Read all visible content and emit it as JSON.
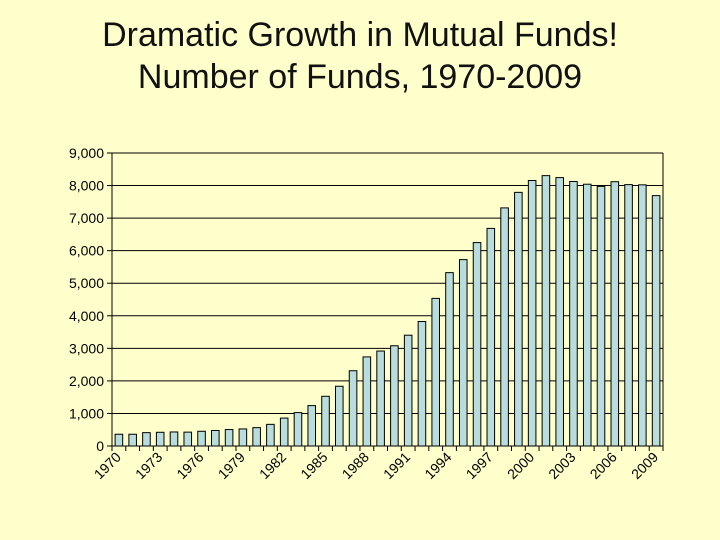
{
  "slide": {
    "title_line1": "Dramatic Growth in Mutual Funds!",
    "title_line2": "Number of Funds, 1970-2009"
  },
  "colors": {
    "background": "#ffffcc",
    "bar_fill": "#b9dcdc",
    "bar_stroke": "#000000",
    "gridline": "#000000"
  },
  "chart_data": {
    "type": "bar",
    "title": "",
    "xlabel": "",
    "ylabel": "",
    "ylim": [
      0,
      9000
    ],
    "yticks": [
      0,
      1000,
      2000,
      3000,
      4000,
      5000,
      6000,
      7000,
      8000,
      9000
    ],
    "ytick_labels": [
      "0",
      "1,000",
      "2,000",
      "3,000",
      "4,000",
      "5,000",
      "6,000",
      "7,000",
      "8,000",
      "9,000"
    ],
    "grid": true,
    "legend": "none",
    "categories": [
      "1970",
      "1971",
      "1972",
      "1973",
      "1974",
      "1975",
      "1976",
      "1977",
      "1978",
      "1979",
      "1980",
      "1981",
      "1982",
      "1983",
      "1984",
      "1985",
      "1986",
      "1987",
      "1988",
      "1989",
      "1990",
      "1991",
      "1992",
      "1993",
      "1994",
      "1995",
      "1996",
      "1997",
      "1998",
      "1999",
      "2000",
      "2001",
      "2002",
      "2003",
      "2004",
      "2005",
      "2006",
      "2007",
      "2008",
      "2009"
    ],
    "xtick_labels": [
      "1970",
      "1973",
      "1976",
      "1979",
      "1982",
      "1985",
      "1988",
      "1991",
      "1994",
      "1997",
      "2000",
      "2003",
      "2006",
      "2009"
    ],
    "values": [
      361,
      361,
      410,
      421,
      431,
      426,
      452,
      477,
      505,
      524,
      564,
      665,
      857,
      1026,
      1241,
      1527,
      1835,
      2312,
      2737,
      2917,
      3079,
      3403,
      3824,
      4534,
      5325,
      5725,
      6248,
      6684,
      7314,
      7791,
      8155,
      8305,
      8244,
      8125,
      8041,
      7975,
      8118,
      8029,
      8022,
      7691
    ]
  }
}
